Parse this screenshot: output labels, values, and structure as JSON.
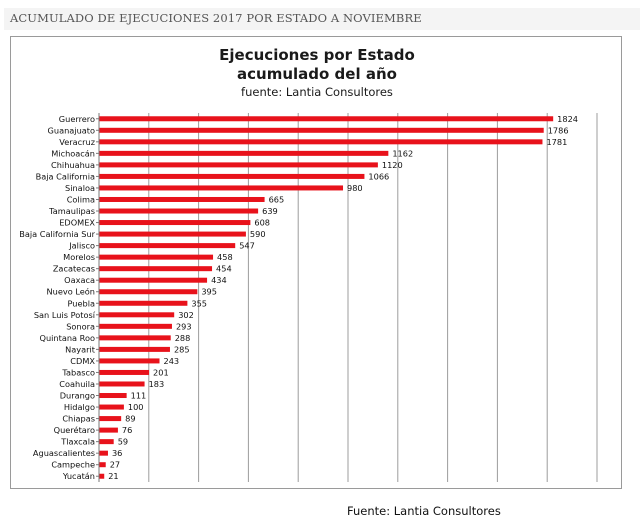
{
  "header": {
    "title": "ACUMULADO DE EJECUCIONES 2017 POR ESTADO A NOVIEMBRE"
  },
  "chart_data": {
    "type": "bar",
    "orientation": "horizontal",
    "title": "Ejecuciones por Estado",
    "subtitle": "acumulado del año",
    "subtitle2": "fuente: Lantia Consultores",
    "categories": [
      "Guerrero",
      "Guanajuato",
      "Veracruz",
      "Michoacán",
      "Chihuahua",
      "Baja California",
      "Sinaloa",
      "Colima",
      "Tamaulipas",
      "EDOMEX",
      "Baja California Sur",
      "Jalisco",
      "Morelos",
      "Zacatecas",
      "Oaxaca",
      "Nuevo León",
      "Puebla",
      "San Luis Potosí",
      "Sonora",
      "Quintana Roo",
      "Nayarit",
      "CDMX",
      "Tabasco",
      "Coahuila",
      "Durango",
      "Hidalgo",
      "Chiapas",
      "Querétaro",
      "Tlaxcala",
      "Aguascalientes",
      "Campeche",
      "Yucatán"
    ],
    "values": [
      1824,
      1786,
      1781,
      1162,
      1120,
      1066,
      980,
      665,
      639,
      608,
      590,
      547,
      458,
      454,
      434,
      395,
      355,
      302,
      293,
      288,
      285,
      243,
      201,
      183,
      111,
      100,
      89,
      76,
      59,
      36,
      27,
      21
    ],
    "data_labels": true,
    "xlim": [
      0,
      2000
    ],
    "vertical_grid": true,
    "bar_color": "#e8121b"
  },
  "source": "Fuente: Lantia Consultores"
}
